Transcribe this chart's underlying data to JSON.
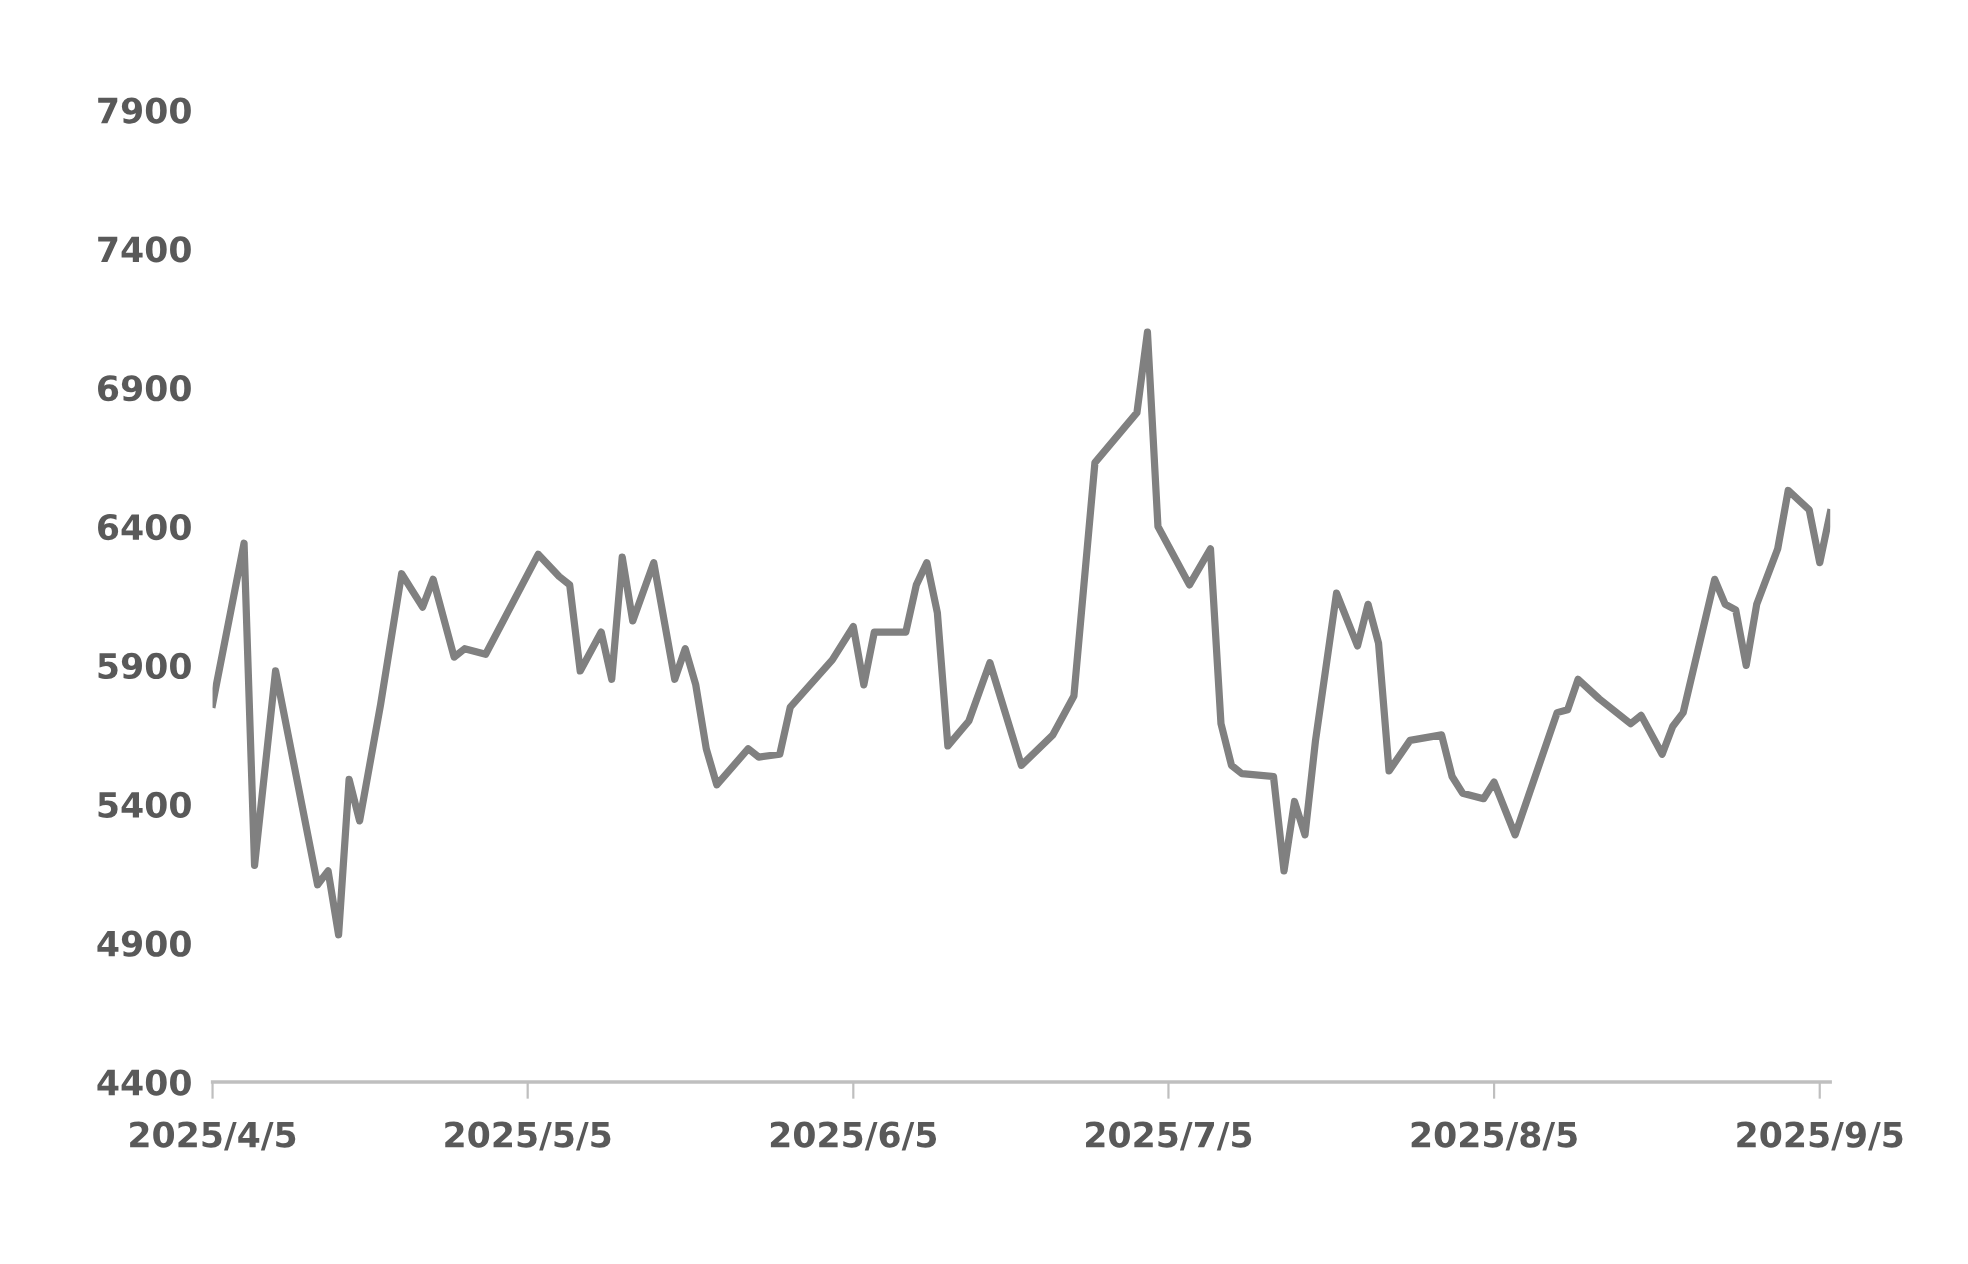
{
  "chart_data": {
    "type": "line",
    "x": [
      "2025-04-05",
      "2025-04-08",
      "2025-04-09",
      "2025-04-11",
      "2025-04-15",
      "2025-04-16",
      "2025-04-17",
      "2025-04-18",
      "2025-04-19",
      "2025-04-21",
      "2025-04-23",
      "2025-04-25",
      "2025-04-26",
      "2025-04-28",
      "2025-04-29",
      "2025-05-01",
      "2025-05-06",
      "2025-05-08",
      "2025-05-09",
      "2025-05-10",
      "2025-05-12",
      "2025-05-13",
      "2025-05-14",
      "2025-05-15",
      "2025-05-17",
      "2025-05-19",
      "2025-05-20",
      "2025-05-21",
      "2025-05-22",
      "2025-05-23",
      "2025-05-26",
      "2025-05-27",
      "2025-05-29",
      "2025-05-30",
      "2025-06-03",
      "2025-06-05",
      "2025-06-06",
      "2025-06-07",
      "2025-06-10",
      "2025-06-11",
      "2025-06-12",
      "2025-06-13",
      "2025-06-14",
      "2025-06-16",
      "2025-06-18",
      "2025-06-21",
      "2025-06-24",
      "2025-06-26",
      "2025-06-28",
      "2025-07-02",
      "2025-07-03",
      "2025-07-04",
      "2025-07-07",
      "2025-07-09",
      "2025-07-10",
      "2025-07-11",
      "2025-07-12",
      "2025-07-15",
      "2025-07-16",
      "2025-07-17",
      "2025-07-18",
      "2025-07-19",
      "2025-07-21",
      "2025-07-23",
      "2025-07-24",
      "2025-07-25",
      "2025-07-26",
      "2025-07-28",
      "2025-07-31",
      "2025-08-01",
      "2025-08-02",
      "2025-08-04",
      "2025-08-05",
      "2025-08-07",
      "2025-08-08",
      "2025-08-11",
      "2025-08-12",
      "2025-08-13",
      "2025-08-15",
      "2025-08-18",
      "2025-08-19",
      "2025-08-21",
      "2025-08-22",
      "2025-08-23",
      "2025-08-26",
      "2025-08-27",
      "2025-08-28",
      "2025-08-29",
      "2025-08-30",
      "2025-09-01",
      "2025-09-02",
      "2025-09-04",
      "2025-09-05",
      "2025-09-06"
    ],
    "series": [
      {
        "color": "#808080",
        "values": [
          5760,
          6340,
          5180,
          5880,
          5110,
          5160,
          4930,
          5490,
          5340,
          5760,
          6230,
          6110,
          6210,
          5930,
          5960,
          5940,
          6300,
          6220,
          6190,
          5880,
          6020,
          5850,
          6290,
          6060,
          6270,
          5850,
          5960,
          5830,
          5600,
          5470,
          5600,
          5570,
          5580,
          5750,
          5920,
          6040,
          5830,
          6020,
          6020,
          6190,
          6270,
          6090,
          5610,
          5700,
          5910,
          5540,
          5650,
          5790,
          6630,
          6810,
          7100,
          6400,
          6190,
          6320,
          5690,
          5540,
          5510,
          5500,
          5160,
          5410,
          5290,
          5630,
          6160,
          5970,
          6120,
          5980,
          5520,
          5630,
          5650,
          5500,
          5440,
          5420,
          5480,
          5290,
          5400,
          5730,
          5740,
          5850,
          5780,
          5690,
          5720,
          5580,
          5680,
          5730,
          6210,
          6120,
          6100,
          5900,
          6120,
          6320,
          6530,
          6460,
          6270,
          6450
        ]
      }
    ],
    "xlim": [
      "2025-04-05",
      "2025-09-06"
    ],
    "xticks": [
      {
        "value": "2025-04-05",
        "label": "2025/4/5"
      },
      {
        "value": "2025-05-05",
        "label": "2025/5/5"
      },
      {
        "value": "2025-06-05",
        "label": "2025/6/5"
      },
      {
        "value": "2025-07-05",
        "label": "2025/7/5"
      },
      {
        "value": "2025-08-05",
        "label": "2025/8/5"
      },
      {
        "value": "2025-09-05",
        "label": "2025/9/5"
      }
    ],
    "ylim": [
      4400,
      7900
    ],
    "yticks": [
      4400,
      4900,
      5400,
      5900,
      6400,
      6900,
      7400,
      7900
    ],
    "grid": false,
    "legend": false,
    "marker": "none",
    "line_style": "solid"
  }
}
